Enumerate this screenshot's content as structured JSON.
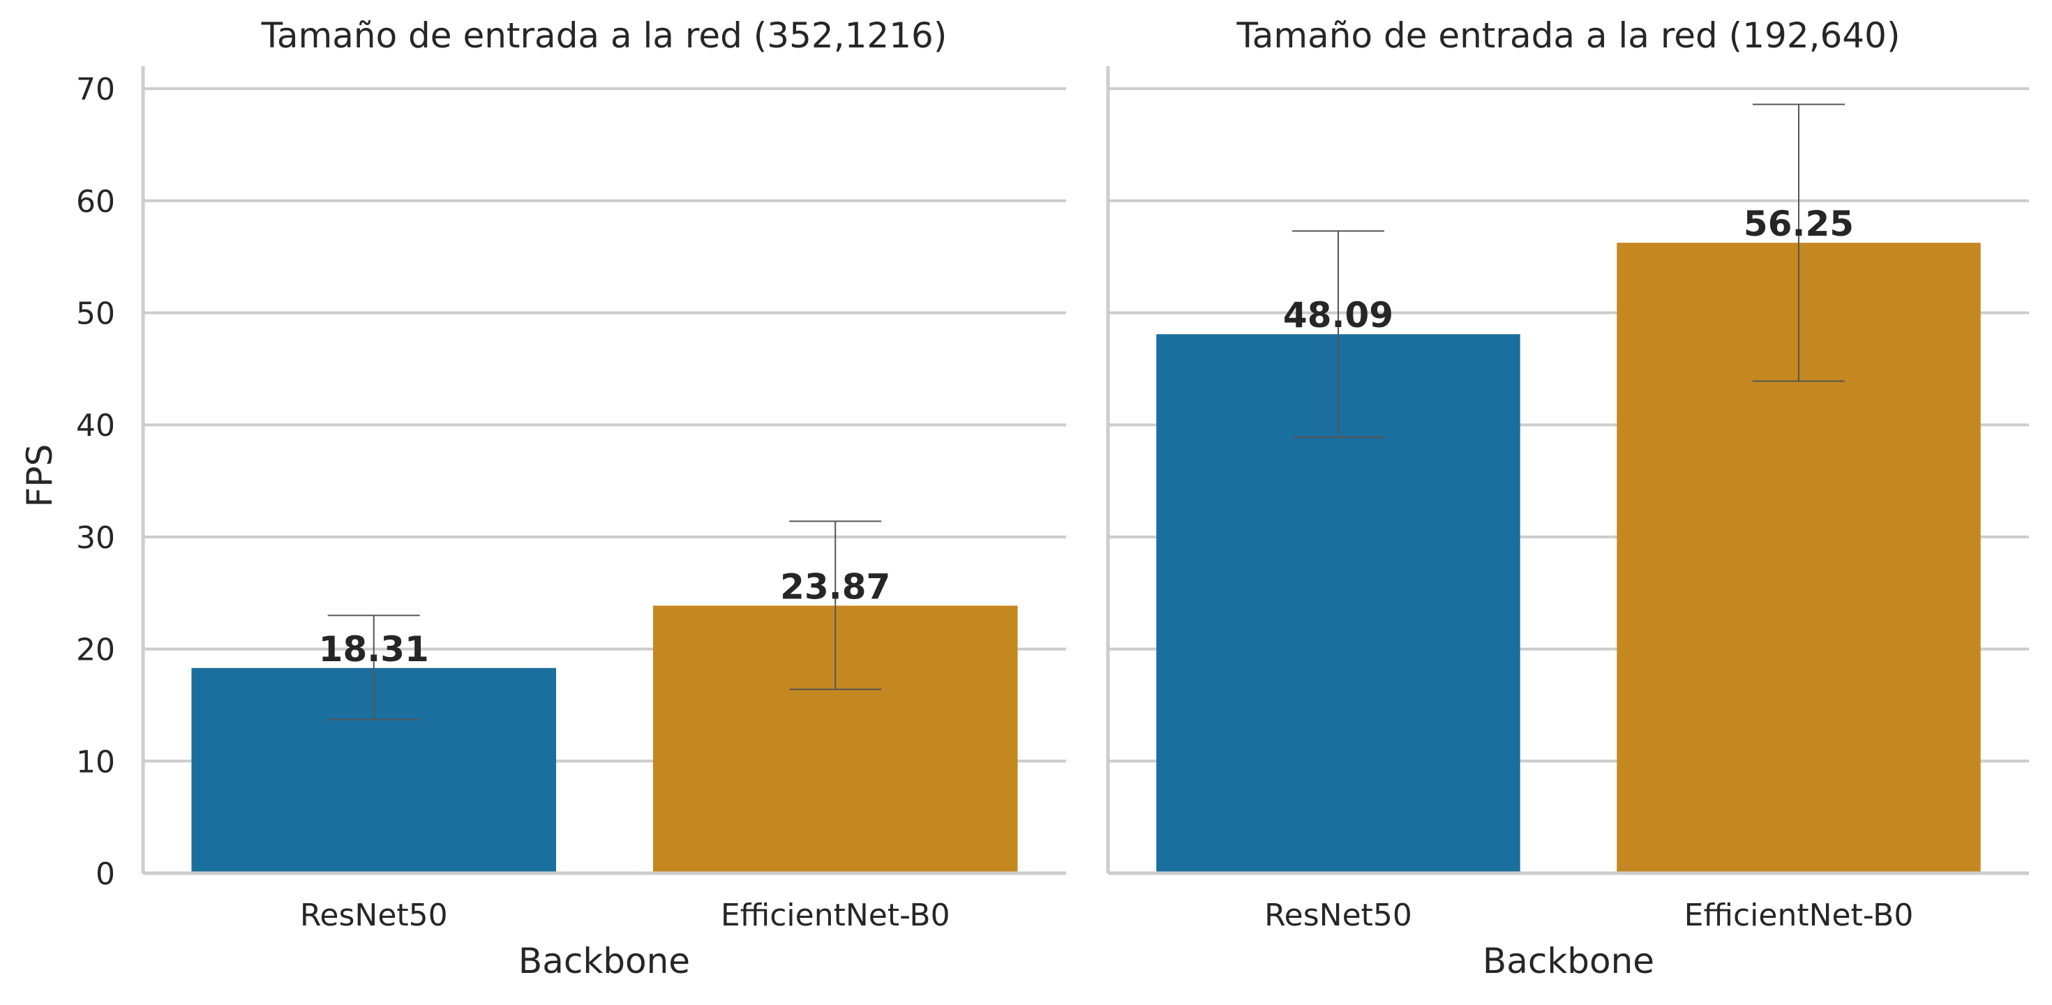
{
  "chart_data": [
    {
      "type": "bar",
      "title": "Tamaño de entrada a la red (352,1216)",
      "xlabel": "Backbone",
      "ylabel": "FPS",
      "ylim": [
        0,
        72
      ],
      "yticks": [
        "0",
        "10",
        "20",
        "30",
        "40",
        "50",
        "60",
        "70"
      ],
      "grid": "horizontal",
      "categories": [
        "ResNet50",
        "EfficientNet-B0"
      ],
      "values": [
        18.31,
        23.87
      ],
      "value_labels": [
        "18.31",
        "23.87"
      ],
      "error_low": [
        13.7,
        16.4
      ],
      "error_high": [
        23.0,
        31.4
      ],
      "colors": [
        "#1a6f9e",
        "#c58820"
      ]
    },
    {
      "type": "bar",
      "title": "Tamaño de entrada a la red (192,640)",
      "xlabel": "Backbone",
      "ylabel": "",
      "ylim": [
        0,
        72
      ],
      "grid": "horizontal",
      "categories": [
        "ResNet50",
        "EfficientNet-B0"
      ],
      "values": [
        48.09,
        56.25
      ],
      "value_labels": [
        "48.09",
        "56.25"
      ],
      "error_low": [
        38.9,
        43.9
      ],
      "error_high": [
        57.3,
        68.6
      ],
      "colors": [
        "#1a6f9e",
        "#c58820"
      ]
    }
  ]
}
